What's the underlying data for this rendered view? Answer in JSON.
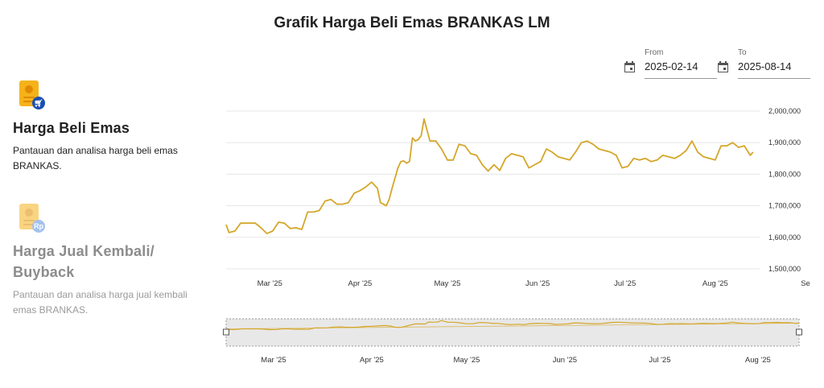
{
  "page": {
    "title": "Grafik Harga Beli Emas BRANKAS LM"
  },
  "sidebar": {
    "items": [
      {
        "title": "Harga Beli Emas",
        "description": "Pantauan dan analisa harga beli emas BRANKAS.",
        "icon": "gold-card-cart-icon",
        "active": true
      },
      {
        "title": "Harga Jual Kembali/ Buyback",
        "description": "Pantauan dan analisa harga jual kembali emas BRANKAS.",
        "icon": "gold-card-rupiah-icon",
        "active": false
      }
    ],
    "badge_text_rp": "Rp"
  },
  "filters": {
    "from_label": "From",
    "from_value": "2025-02-14",
    "to_label": "To",
    "to_value": "2025-08-14",
    "icon": "calendar-icon"
  },
  "colors": {
    "line": "#D4A62A",
    "grid": "#e6e6e6",
    "navigator_bg": "#e8e8e8"
  },
  "chart_data": {
    "type": "line",
    "title": "Grafik Harga Beli Emas BRANKAS LM",
    "xlabel": "",
    "ylabel": "",
    "x_range": [
      "2025-02-14",
      "2025-09-01"
    ],
    "ylim": [
      1500000,
      2000000
    ],
    "y_ticks": [
      "1,500,000",
      "1,600,000",
      "1,700,000",
      "1,800,000",
      "1,900,000",
      "2,000,000"
    ],
    "x_ticks": [
      {
        "date": "2025-03-01",
        "label": "Mar '25"
      },
      {
        "date": "2025-04-01",
        "label": "Apr '25"
      },
      {
        "date": "2025-05-01",
        "label": "May '25"
      },
      {
        "date": "2025-06-01",
        "label": "Jun '25"
      },
      {
        "date": "2025-07-01",
        "label": "Jul '25"
      },
      {
        "date": "2025-08-01",
        "label": "Aug '25"
      },
      {
        "date": "2025-09-01",
        "label": "Se"
      }
    ],
    "navigator_x_ticks": [
      "Mar '25",
      "Apr '25",
      "May '25",
      "Jun '25",
      "Jul '25",
      "Aug '25"
    ],
    "grid": true,
    "legend": "none",
    "series": [
      {
        "x": [
          "2025-02-14",
          "2025-02-15",
          "2025-02-17",
          "2025-02-19",
          "2025-02-21",
          "2025-02-24",
          "2025-02-26",
          "2025-02-28",
          "2025-03-02",
          "2025-03-04",
          "2025-03-06",
          "2025-03-08",
          "2025-03-10",
          "2025-03-12",
          "2025-03-14",
          "2025-03-16",
          "2025-03-18",
          "2025-03-20",
          "2025-03-22",
          "2025-03-24",
          "2025-03-26",
          "2025-03-28",
          "2025-03-30",
          "2025-04-01",
          "2025-04-03",
          "2025-04-05",
          "2025-04-07",
          "2025-04-08",
          "2025-04-10",
          "2025-04-11",
          "2025-04-12",
          "2025-04-14",
          "2025-04-15",
          "2025-04-16",
          "2025-04-17",
          "2025-04-18",
          "2025-04-19",
          "2025-04-20",
          "2025-04-21",
          "2025-04-22",
          "2025-04-23",
          "2025-04-25",
          "2025-04-27",
          "2025-04-29",
          "2025-05-01",
          "2025-05-03",
          "2025-05-05",
          "2025-05-07",
          "2025-05-09",
          "2025-05-11",
          "2025-05-13",
          "2025-05-15",
          "2025-05-17",
          "2025-05-19",
          "2025-05-21",
          "2025-05-23",
          "2025-05-25",
          "2025-05-27",
          "2025-05-29",
          "2025-05-31",
          "2025-06-02",
          "2025-06-04",
          "2025-06-06",
          "2025-06-08",
          "2025-06-10",
          "2025-06-12",
          "2025-06-14",
          "2025-06-16",
          "2025-06-18",
          "2025-06-20",
          "2025-06-22",
          "2025-06-24",
          "2025-06-26",
          "2025-06-28",
          "2025-06-30",
          "2025-07-02",
          "2025-07-04",
          "2025-07-06",
          "2025-07-08",
          "2025-07-10",
          "2025-07-12",
          "2025-07-14",
          "2025-07-16",
          "2025-07-18",
          "2025-07-20",
          "2025-07-22",
          "2025-07-24",
          "2025-07-26",
          "2025-07-28",
          "2025-07-30",
          "2025-08-01",
          "2025-08-03",
          "2025-08-05",
          "2025-08-07",
          "2025-08-09",
          "2025-08-11",
          "2025-08-13",
          "2025-08-14"
        ],
        "y": [
          1640000,
          1615000,
          1620000,
          1645000,
          1645000,
          1645000,
          1630000,
          1612000,
          1620000,
          1648000,
          1645000,
          1628000,
          1630000,
          1625000,
          1680000,
          1680000,
          1685000,
          1715000,
          1720000,
          1705000,
          1705000,
          1710000,
          1740000,
          1748000,
          1760000,
          1775000,
          1755000,
          1710000,
          1700000,
          1720000,
          1755000,
          1820000,
          1840000,
          1842000,
          1835000,
          1840000,
          1915000,
          1905000,
          1910000,
          1922000,
          1975000,
          1905000,
          1905000,
          1880000,
          1845000,
          1845000,
          1895000,
          1890000,
          1865000,
          1860000,
          1830000,
          1810000,
          1830000,
          1812000,
          1850000,
          1865000,
          1860000,
          1855000,
          1820000,
          1830000,
          1840000,
          1880000,
          1870000,
          1855000,
          1850000,
          1845000,
          1870000,
          1900000,
          1905000,
          1895000,
          1880000,
          1875000,
          1870000,
          1860000,
          1820000,
          1825000,
          1850000,
          1845000,
          1850000,
          1840000,
          1845000,
          1860000,
          1855000,
          1850000,
          1860000,
          1875000,
          1905000,
          1870000,
          1855000,
          1850000,
          1845000,
          1890000,
          1890000,
          1900000,
          1885000,
          1890000,
          1860000,
          1870000
        ]
      }
    ]
  }
}
